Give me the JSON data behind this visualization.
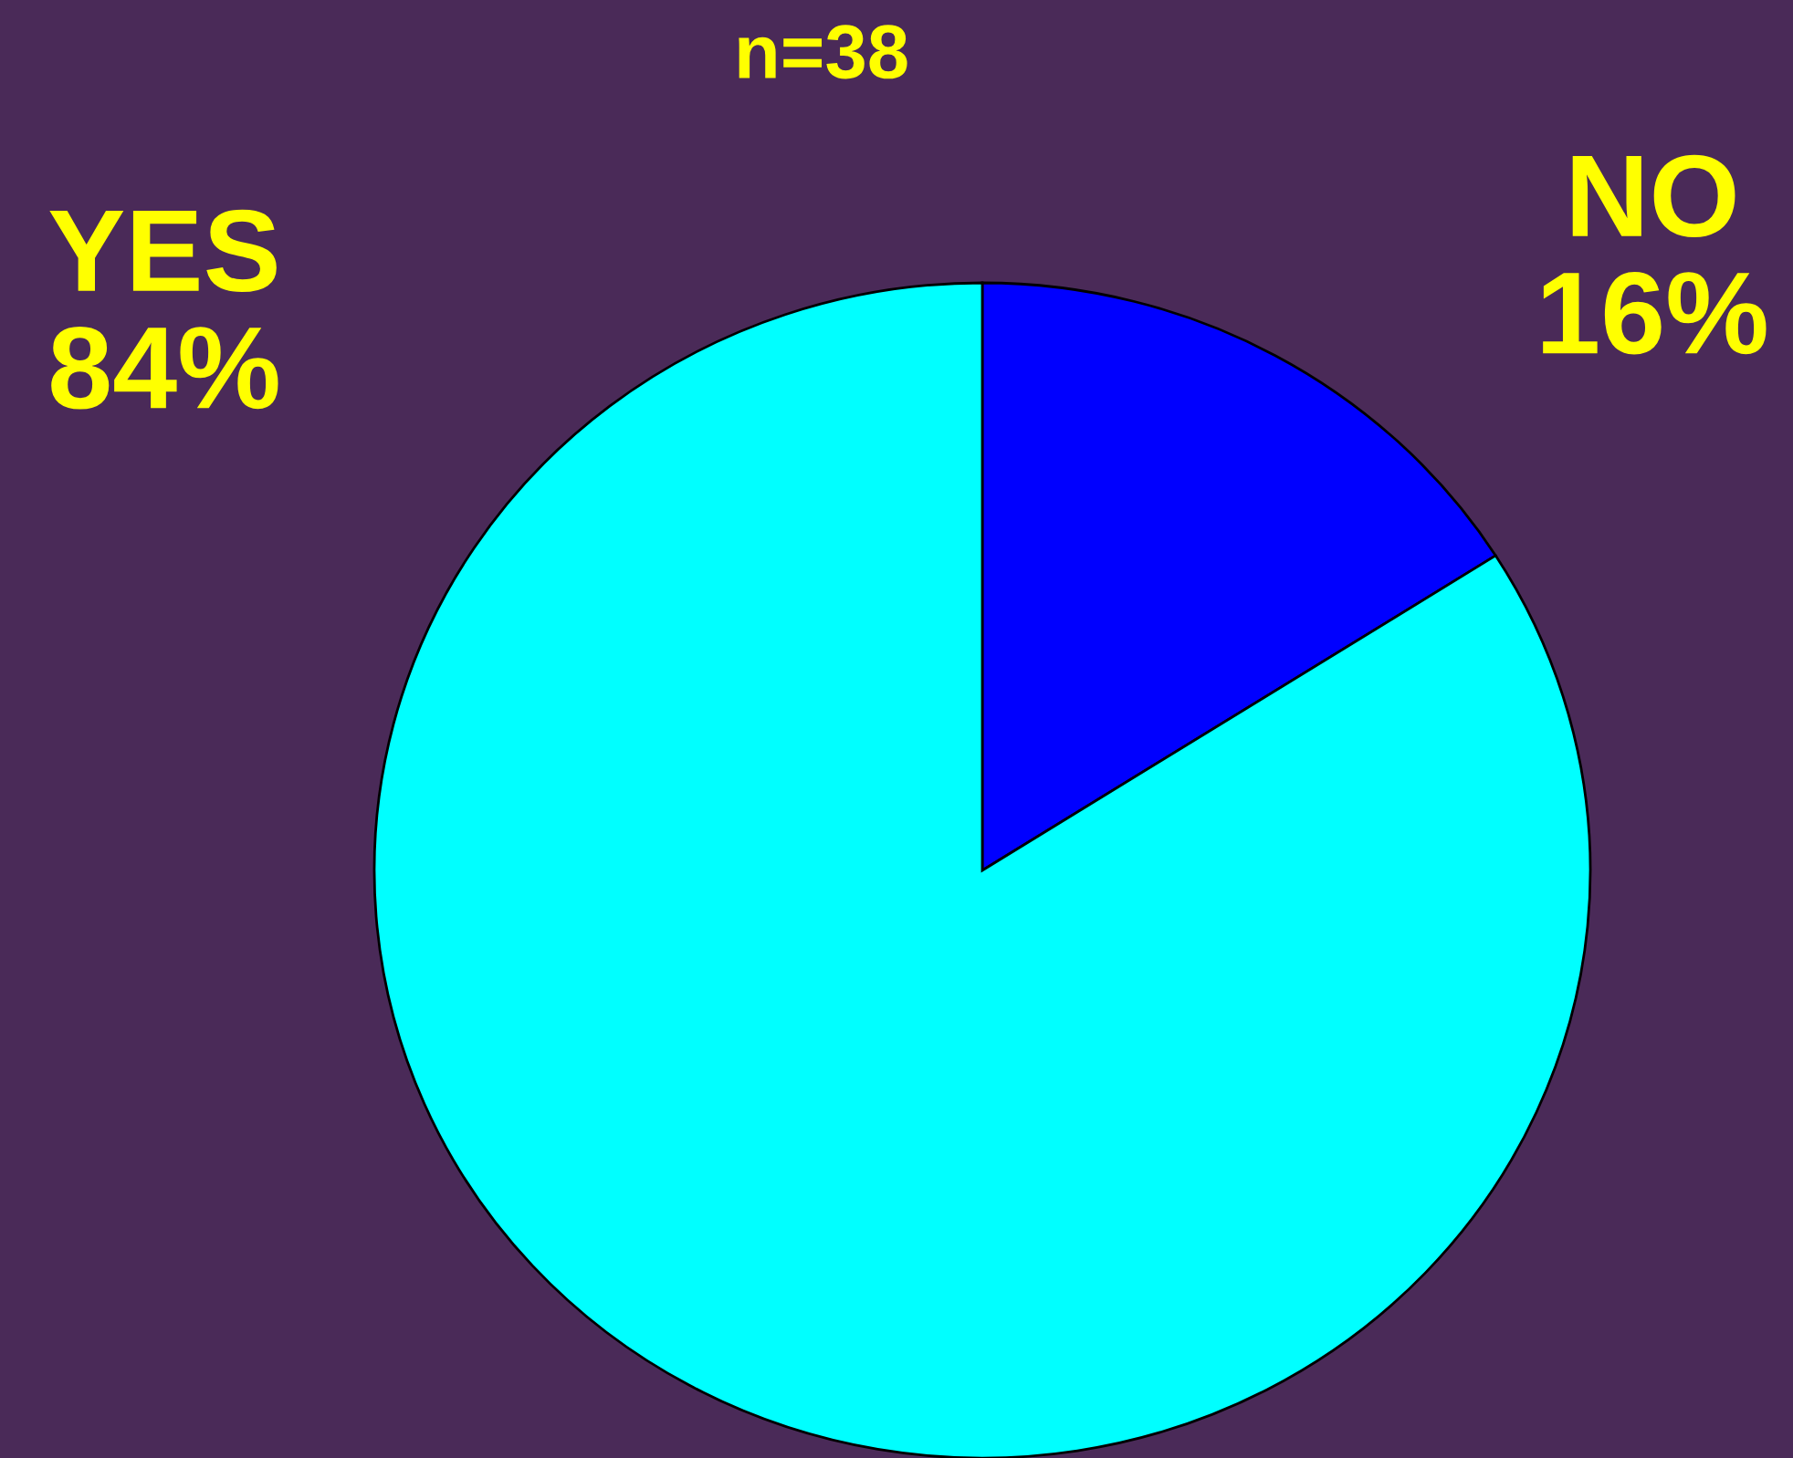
{
  "chart_data": {
    "type": "pie",
    "title": "n=38",
    "categories": [
      "NO",
      "YES"
    ],
    "values": [
      16,
      84
    ],
    "colors": [
      "#0000ff",
      "#00ffff"
    ],
    "value_labels": [
      "16%",
      "84%"
    ],
    "legend": false
  }
}
